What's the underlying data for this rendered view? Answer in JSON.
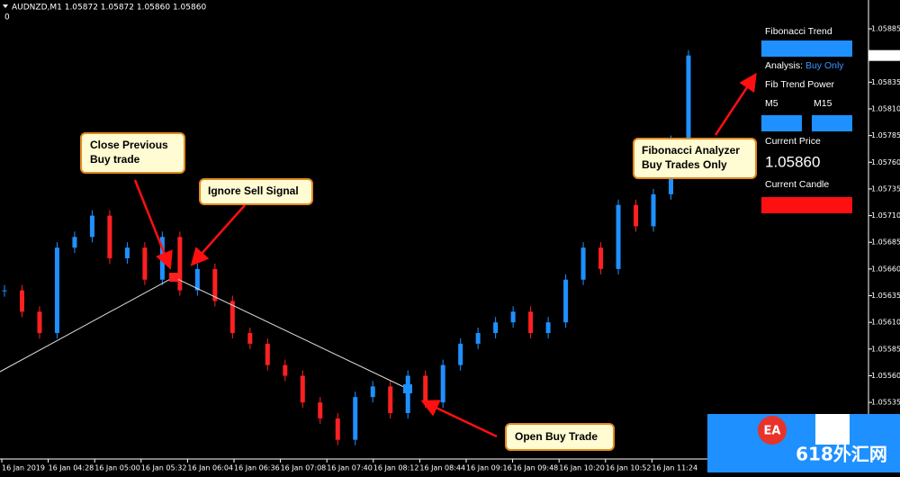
{
  "header": {
    "symbol_info": "AUDNZD,M1  1.05872 1.05872 1.05860 1.05860",
    "sub": "0"
  },
  "chart_data": {
    "type": "candlestick",
    "closes": [
      1.0564,
      1.0562,
      1.056,
      1.0568,
      1.0569,
      1.0571,
      1.0567,
      1.0568,
      1.0565,
      1.0569,
      1.0564,
      1.0566,
      1.0563,
      1.056,
      1.0559,
      1.0557,
      1.0556,
      1.05535,
      1.0552,
      1.055,
      1.0554,
      1.0555,
      1.05525,
      1.0556,
      1.05535,
      1.0557,
      1.0559,
      1.056,
      1.0561,
      1.0562,
      1.056,
      1.0561,
      1.0565,
      1.0568,
      1.0566,
      1.0572,
      1.057,
      1.0573,
      1.0578,
      1.0586
    ],
    "up_color": "#1e90ff",
    "down_color": "#ff2020",
    "ylim": [
      1.05482,
      1.05912
    ],
    "yticks": [
      1.05885,
      {
        "value": 1.0586,
        "label": "1.05860"
      },
      1.05835,
      {
        "value": 1.0581,
        "label": "1.05810"
      },
      1.05785,
      {
        "value": 1.0576,
        "label": "1.05760"
      },
      1.05735,
      {
        "value": 1.0571,
        "label": "1.05710"
      },
      1.05685,
      {
        "value": 1.0566,
        "label": "1.05660"
      },
      1.05635,
      {
        "value": 1.0561,
        "label": "1.05610"
      },
      1.05585,
      {
        "value": 1.0556,
        "label": "1.05560"
      },
      1.05535
    ],
    "current_tick": 1,
    "x_labels": [
      "16 Jan 2019",
      "16 Jan 04:28",
      "16 Jan 05:00",
      "16 Jan 05:32",
      "16 Jan 06:04",
      "16 Jan 06:36",
      "16 Jan 07:08",
      "16 Jan 07:40",
      "16 Jan 08:12",
      "16 Jan 08:44",
      "16 Jan 09:16",
      "16 Jan 09:48",
      "16 Jan 10:20",
      "16 Jan 10:52",
      "16 Jan 11:24"
    ]
  },
  "annotations": [
    "Close Previous Buy trade",
    "Ignore Sell Signal",
    "Open Buy Trade",
    "Fibonacci Analyzer Buy Trades Only"
  ],
  "panel": {
    "title": "Fibonacci Trend",
    "analysis_label": "Analysis:",
    "analysis_value": "Buy Only",
    "power": "Fib Trend Power",
    "m5": "M5",
    "m15": "M15",
    "price_label": "Current Price",
    "price": "1.05860",
    "candle_label": "Current Candle"
  },
  "watermark": {
    "badge": "EA",
    "text": "618外汇网"
  }
}
